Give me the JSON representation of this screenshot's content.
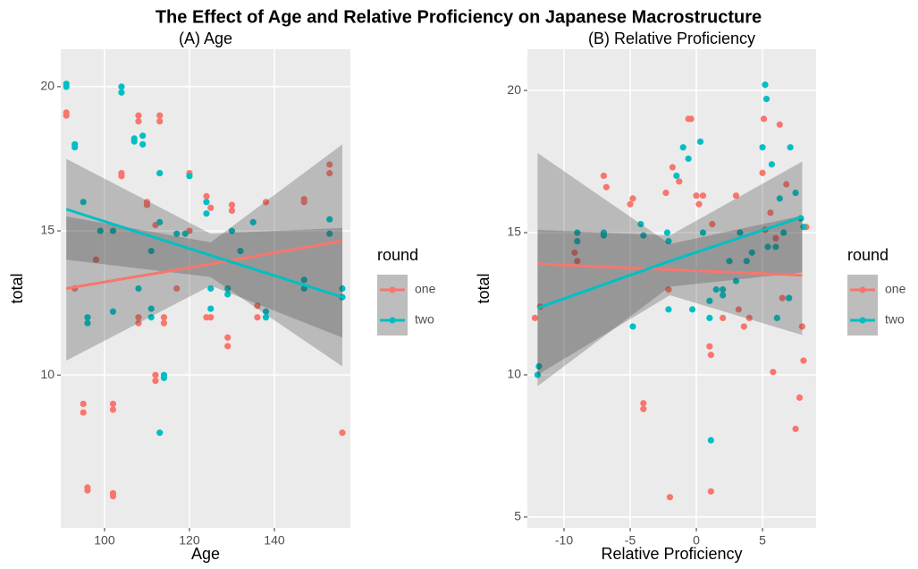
{
  "title": "The Effect of Age and Relative Proficiency on Japanese Macrostructure",
  "chart_data": [
    {
      "type": "scatter",
      "subtitle": "(A) Age",
      "x_label": "Age",
      "y_label": "total",
      "legend_title": "round",
      "xlim": [
        89.7,
        157.9
      ],
      "ylim": [
        4.7,
        21.3
      ],
      "xticks": [
        100,
        120,
        140
      ],
      "yticks": [
        10,
        15,
        20
      ],
      "grid": true,
      "series": [
        {
          "name": "one",
          "color": "#F8766D",
          "x": [
            91,
            91,
            93,
            95,
            95,
            96,
            96,
            98,
            102,
            102,
            102,
            102,
            104,
            104,
            108,
            108,
            108,
            108,
            110,
            110,
            112,
            112,
            112,
            113,
            113,
            113,
            114,
            114,
            117,
            120,
            120,
            124,
            124,
            125,
            125,
            129,
            129,
            130,
            130,
            136,
            136,
            138,
            147,
            147,
            153,
            153,
            156
          ],
          "values": [
            19.0,
            19.1,
            13.0,
            8.7,
            9.0,
            6.1,
            6.0,
            14.0,
            8.8,
            9.0,
            5.9,
            5.8,
            16.9,
            17.0,
            18.8,
            19.0,
            12.0,
            11.8,
            16.0,
            15.9,
            9.8,
            10.0,
            15.2,
            17.0,
            18.8,
            19.0,
            12.0,
            11.8,
            13.0,
            17.0,
            15.0,
            16.2,
            12.0,
            15.8,
            12.0,
            11.0,
            11.3,
            15.9,
            15.7,
            12.0,
            12.4,
            16.0,
            16.1,
            16.0,
            17.3,
            17.0,
            8.0
          ],
          "fit": {
            "x": [
              91,
              125,
              156
            ],
            "values": [
              13.0,
              13.85,
              14.65
            ],
            "lower": [
              10.5,
              13.1,
              11.3
            ],
            "upper": [
              15.5,
              14.6,
              18.0
            ]
          }
        },
        {
          "name": "two",
          "color": "#00BFC4",
          "x": [
            91,
            91,
            93,
            93,
            95,
            96,
            96,
            99,
            102,
            102,
            104,
            104,
            107,
            107,
            108,
            109,
            109,
            111,
            111,
            111,
            113,
            113,
            113,
            114,
            114,
            117,
            119,
            120,
            124,
            124,
            125,
            125,
            129,
            129,
            130,
            132,
            135,
            138,
            138,
            147,
            147,
            153,
            153,
            156,
            156
          ],
          "values": [
            20.0,
            20.1,
            17.9,
            18.0,
            16.0,
            11.8,
            12.0,
            15.0,
            12.2,
            15.0,
            19.8,
            20.0,
            18.1,
            18.2,
            13.0,
            18.3,
            18.0,
            12.0,
            12.3,
            14.3,
            17.0,
            15.3,
            8.0,
            9.9,
            10.0,
            14.9,
            14.9,
            16.9,
            16.0,
            15.6,
            13.0,
            12.3,
            13.0,
            12.8,
            15.0,
            14.3,
            15.3,
            12.0,
            12.2,
            13.3,
            13.0,
            15.4,
            14.9,
            13.0,
            12.7
          ],
          "fit": {
            "x": [
              91,
              125,
              156
            ],
            "values": [
              15.75,
              14.15,
              12.7
            ],
            "lower": [
              14.0,
              13.4,
              10.3
            ],
            "upper": [
              17.5,
              14.9,
              15.1
            ]
          }
        }
      ]
    },
    {
      "type": "scatter",
      "subtitle": "(B) Relative Proficiency",
      "x_label": "Relative Proficiency",
      "y_label": "total",
      "legend_title": "round",
      "xlim": [
        -12.77,
        9.05
      ],
      "ylim": [
        4.62,
        21.45
      ],
      "xticks": [
        -10,
        -5,
        0,
        5
      ],
      "yticks": [
        5,
        10,
        15,
        20
      ],
      "grid": true,
      "series": [
        {
          "name": "one",
          "color": "#F8766D",
          "x": [
            -12.2,
            -11.8,
            -9.2,
            -9,
            -7,
            -6.8,
            -5,
            -4.8,
            -4,
            -4,
            -2.3,
            -2.1,
            -2,
            -1.8,
            -1.3,
            -0.6,
            -0.4,
            0,
            0.2,
            0.5,
            1,
            1.1,
            1.1,
            1.2,
            2,
            3,
            3.2,
            3.6,
            4,
            5,
            5.1,
            5.2,
            5.6,
            5.8,
            6,
            6.3,
            6.5,
            6.8,
            7,
            7.5,
            7.8,
            8,
            8.1,
            8.3
          ],
          "values": [
            12.0,
            12.4,
            14.3,
            14.0,
            17.0,
            16.6,
            16.0,
            16.2,
            8.8,
            9.0,
            16.4,
            13.0,
            5.7,
            17.3,
            16.8,
            19.0,
            19.0,
            16.3,
            16.0,
            16.3,
            11.0,
            10.7,
            5.9,
            15.3,
            12.0,
            16.3,
            12.3,
            11.7,
            12.0,
            17.1,
            19.0,
            15.1,
            15.7,
            10.1,
            14.8,
            18.8,
            12.7,
            16.7,
            12.7,
            8.1,
            9.2,
            11.7,
            10.5,
            15.2
          ],
          "fit": {
            "x": [
              -12,
              -2,
              8
            ],
            "values": [
              13.9,
              13.7,
              13.5
            ],
            "lower": [
              10.0,
              12.8,
              11.4
            ],
            "upper": [
              17.8,
              14.6,
              15.6
            ]
          }
        },
        {
          "name": "two",
          "color": "#00BFC4",
          "x": [
            -12,
            -11.9,
            -9,
            -9,
            -7,
            -7,
            -4.8,
            -4.2,
            -4,
            -2.2,
            -2.1,
            -2.1,
            -1.5,
            -1,
            -0.6,
            -0.3,
            0.3,
            0.5,
            1,
            1,
            1.1,
            1.5,
            2,
            2,
            2.5,
            3,
            3.3,
            3.8,
            4.2,
            5,
            5.2,
            5.3,
            5.4,
            5.7,
            6,
            6.1,
            6.3,
            6.6,
            7,
            7.1,
            7.5,
            7.9,
            8.1
          ],
          "values": [
            10.0,
            10.3,
            15.0,
            14.7,
            15.0,
            14.9,
            11.7,
            15.3,
            14.9,
            15.0,
            14.7,
            12.3,
            17.0,
            18.0,
            17.6,
            12.3,
            18.2,
            15.0,
            12.0,
            12.6,
            7.7,
            13.0,
            12.8,
            13.0,
            14.0,
            13.3,
            15.0,
            14.0,
            14.3,
            18.0,
            20.2,
            19.7,
            14.5,
            17.4,
            14.5,
            12.0,
            16.2,
            15.0,
            12.7,
            18.0,
            16.4,
            15.5,
            15.2
          ],
          "fit": {
            "x": [
              -12,
              -2,
              8
            ],
            "values": [
              12.35,
              14.0,
              15.55
            ],
            "lower": [
              9.6,
              13.1,
              13.6
            ],
            "upper": [
              15.1,
              14.9,
              17.5
            ]
          }
        }
      ]
    }
  ]
}
